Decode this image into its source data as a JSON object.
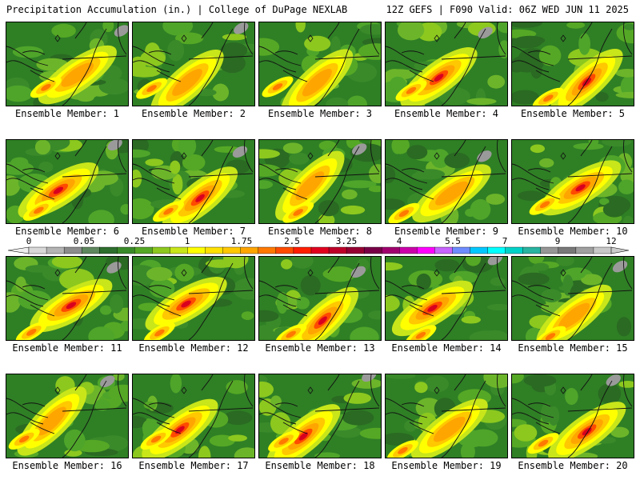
{
  "header": {
    "left": "Precipitation Accumulation (in.) | College of DuPage NEXLAB",
    "right": "12Z GEFS | F090 Valid: 06Z WED JUN 11 2025"
  },
  "caption_prefix": "Ensemble Member:",
  "members": [
    {
      "n": "1",
      "label": "Ensemble Member: 1"
    },
    {
      "n": "2",
      "label": "Ensemble Member: 2"
    },
    {
      "n": "3",
      "label": "Ensemble Member: 3"
    },
    {
      "n": "4",
      "label": "Ensemble Member: 4"
    },
    {
      "n": "5",
      "label": "Ensemble Member: 5"
    },
    {
      "n": "6",
      "label": "Ensemble Member: 6"
    },
    {
      "n": "7",
      "label": "Ensemble Member: 7"
    },
    {
      "n": "8",
      "label": "Ensemble Member: 8"
    },
    {
      "n": "9",
      "label": "Ensemble Member: 9"
    },
    {
      "n": "10",
      "label": "Ensemble Member: 10"
    },
    {
      "n": "11",
      "label": "Ensemble Member: 11"
    },
    {
      "n": "12",
      "label": "Ensemble Member: 12"
    },
    {
      "n": "13",
      "label": "Ensemble Member: 13"
    },
    {
      "n": "14",
      "label": "Ensemble Member: 14"
    },
    {
      "n": "15",
      "label": "Ensemble Member: 15"
    },
    {
      "n": "16",
      "label": "Ensemble Member: 16"
    },
    {
      "n": "17",
      "label": "Ensemble Member: 17"
    },
    {
      "n": "18",
      "label": "Ensemble Member: 18"
    },
    {
      "n": "19",
      "label": "Ensemble Member: 19"
    },
    {
      "n": "20",
      "label": "Ensemble Member: 20"
    }
  ],
  "colorbar": {
    "tick_labels": [
      "0",
      "0.05",
      "0.25",
      "1",
      "1.75",
      "2.5",
      "3.25",
      "4",
      "5.5",
      "7",
      "9",
      "12"
    ],
    "colors": [
      "#d8d8d8",
      "#b4b4b4",
      "#8c8c8c",
      "#5f875f",
      "#2e6e2e",
      "#3a8a2a",
      "#55a825",
      "#8cc81e",
      "#c8e61a",
      "#ffff00",
      "#ffe100",
      "#ffc800",
      "#ffa500",
      "#ff7800",
      "#ff4b00",
      "#ff1e00",
      "#e1001e",
      "#be0028",
      "#960032",
      "#780046",
      "#a0006e",
      "#cc00aa",
      "#ff00ff",
      "#c864ff",
      "#6e8cff",
      "#00c8ff",
      "#00ffff",
      "#00d2c8",
      "#28b4a0",
      "#969696",
      "#787878",
      "#a0a0a0",
      "#c8c8c8"
    ]
  }
}
